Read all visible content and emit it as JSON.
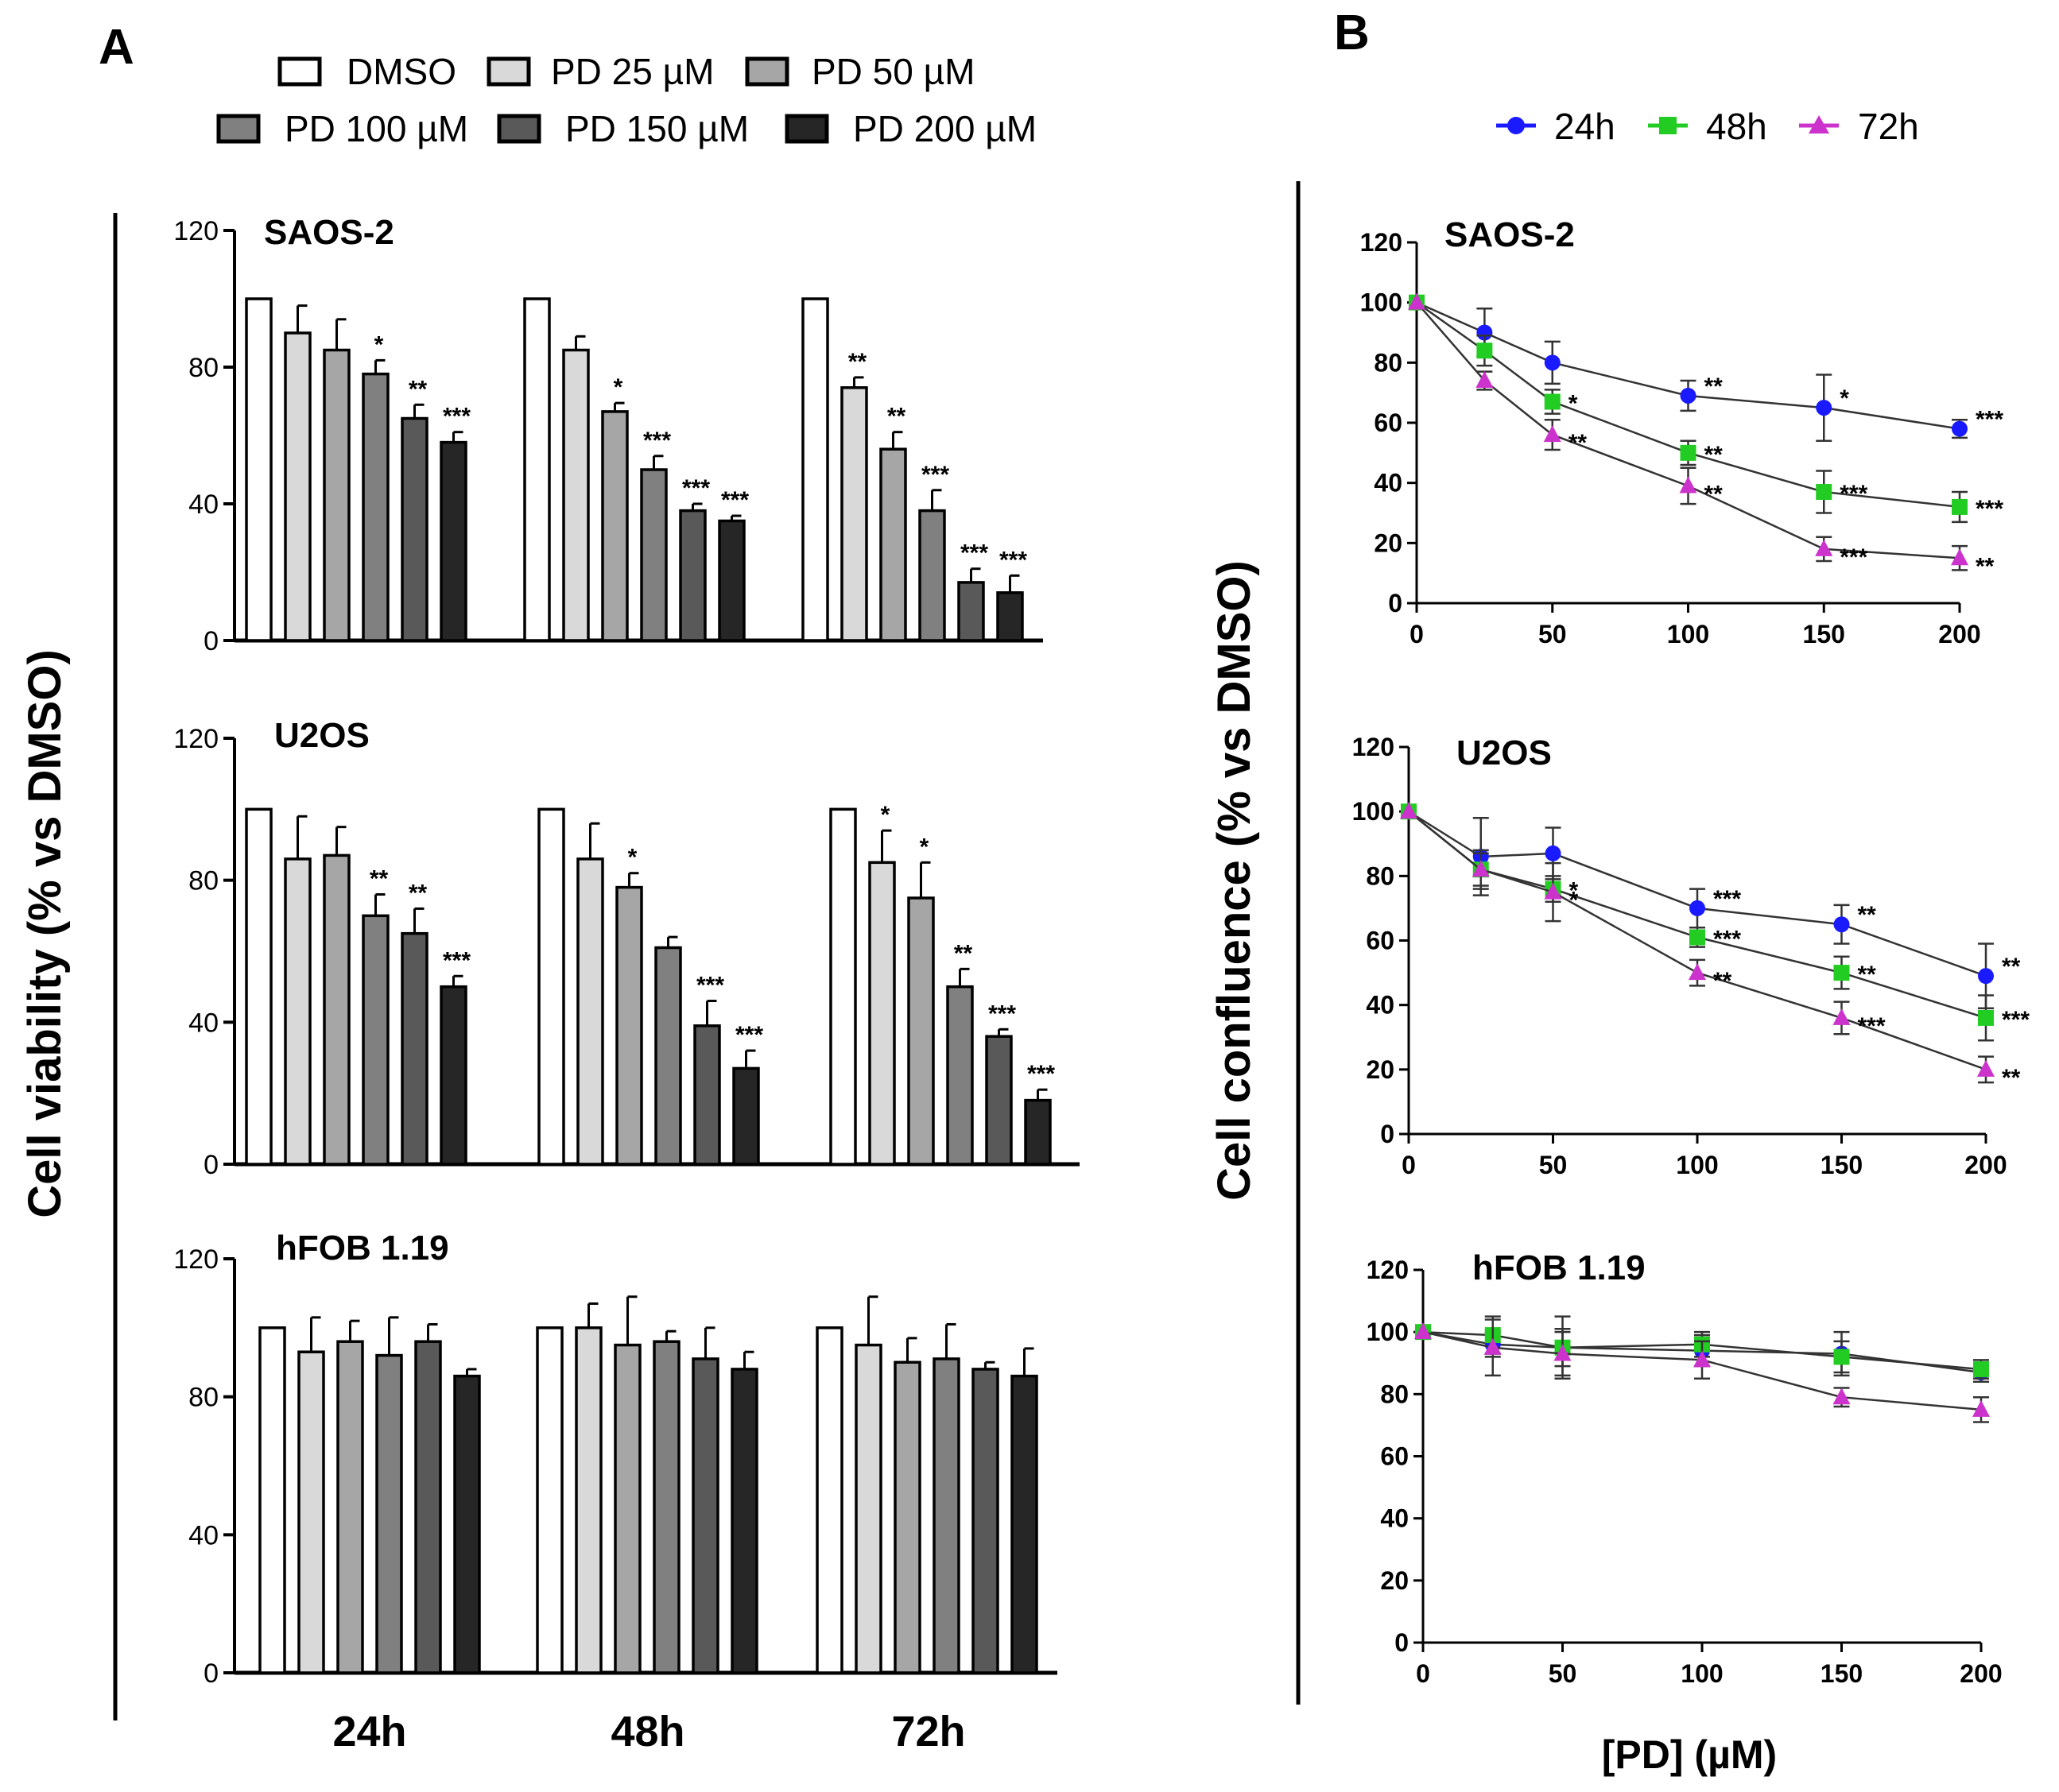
{
  "panel_labels": [
    "A",
    "B"
  ],
  "panel_a": {
    "legend": [
      "DMSO",
      "PD 25 µM",
      "PD 50 µM",
      "PD 100 µM",
      "PD 150 µM",
      "PD 200 µM"
    ],
    "ylabel": "Cell viability (% vs DMSO)",
    "group_labels": [
      "24h",
      "48h",
      "72h"
    ],
    "yticks": [
      0,
      40,
      80,
      120
    ]
  },
  "panel_b": {
    "legend": [
      "24h",
      "48h",
      "72h"
    ],
    "ylabel": "Cell confluence (% vs DMSO)",
    "xlabel": "[PD] (µM)",
    "xticks": [
      0,
      50,
      100,
      150,
      200
    ],
    "yticks": [
      0,
      20,
      40,
      60,
      80,
      100,
      120
    ]
  },
  "colors": {
    "bars": [
      "#ffffff",
      "#d9d9d9",
      "#a6a6a6",
      "#808080",
      "#595959",
      "#262626"
    ],
    "h24": "#1a1aff",
    "h48": "#22cc22",
    "h72": "#cc33cc"
  },
  "chart_data": [
    {
      "type": "bar",
      "title": "SAOS-2",
      "categories": [
        "24h",
        "48h",
        "72h"
      ],
      "ylabel": "Cell viability (% vs DMSO)",
      "ylim": [
        0,
        120
      ],
      "series": [
        {
          "name": "DMSO",
          "values": [
            100,
            100,
            100
          ],
          "errors": [
            0,
            0,
            0
          ],
          "stars": [
            "",
            "",
            ""
          ]
        },
        {
          "name": "PD 25 µM",
          "values": [
            90,
            85,
            74
          ],
          "errors": [
            8,
            4,
            3
          ],
          "stars": [
            "",
            "",
            "**"
          ]
        },
        {
          "name": "PD 50 µM",
          "values": [
            85,
            67,
            56
          ],
          "errors": [
            9,
            2.5,
            5
          ],
          "stars": [
            "",
            "*",
            "**"
          ]
        },
        {
          "name": "PD 100 µM",
          "values": [
            78,
            50,
            38
          ],
          "errors": [
            4,
            4,
            6
          ],
          "stars": [
            "*",
            "***",
            "***"
          ]
        },
        {
          "name": "PD 150 µM",
          "values": [
            65,
            38,
            17
          ],
          "errors": [
            4,
            2,
            4
          ],
          "stars": [
            "**",
            "***",
            "***"
          ]
        },
        {
          "name": "PD 200 µM",
          "values": [
            58,
            35,
            14
          ],
          "errors": [
            3,
            1.5,
            5
          ],
          "stars": [
            "***",
            "***",
            "***"
          ]
        }
      ]
    },
    {
      "type": "bar",
      "title": "U2OS",
      "categories": [
        "24h",
        "48h",
        "72h"
      ],
      "ylabel": "Cell viability (% vs DMSO)",
      "ylim": [
        0,
        120
      ],
      "series": [
        {
          "name": "DMSO",
          "values": [
            100,
            100,
            100
          ],
          "errors": [
            0,
            0,
            0
          ],
          "stars": [
            "",
            "",
            ""
          ]
        },
        {
          "name": "PD 25 µM",
          "values": [
            86,
            86,
            85
          ],
          "errors": [
            12,
            10,
            9
          ],
          "stars": [
            "",
            "",
            "*"
          ]
        },
        {
          "name": "PD 50 µM",
          "values": [
            87,
            78,
            75
          ],
          "errors": [
            8,
            4,
            10
          ],
          "stars": [
            "",
            "*",
            "*"
          ]
        },
        {
          "name": "PD 100 µM",
          "values": [
            70,
            61,
            50
          ],
          "errors": [
            6,
            3,
            5
          ],
          "stars": [
            "**",
            "",
            "**"
          ]
        },
        {
          "name": "PD 150 µM",
          "values": [
            65,
            39,
            36
          ],
          "errors": [
            7,
            7,
            2
          ],
          "stars": [
            "**",
            "***",
            "***"
          ]
        },
        {
          "name": "PD 200 µM",
          "values": [
            50,
            27,
            18
          ],
          "errors": [
            3,
            5,
            3
          ],
          "stars": [
            "***",
            "***",
            "***"
          ]
        }
      ]
    },
    {
      "type": "bar",
      "title": "hFOB 1.19",
      "categories": [
        "24h",
        "48h",
        "72h"
      ],
      "ylabel": "Cell viability (% vs DMSO)",
      "ylim": [
        0,
        120
      ],
      "series": [
        {
          "name": "DMSO",
          "values": [
            100,
            100,
            100
          ],
          "errors": [
            0,
            0,
            0
          ],
          "stars": [
            "",
            "",
            ""
          ]
        },
        {
          "name": "PD 25 µM",
          "values": [
            93,
            100,
            95
          ],
          "errors": [
            10,
            7,
            14
          ],
          "stars": [
            "",
            "",
            ""
          ]
        },
        {
          "name": "PD 50 µM",
          "values": [
            96,
            95,
            90
          ],
          "errors": [
            6,
            14,
            7
          ],
          "stars": [
            "",
            "",
            ""
          ]
        },
        {
          "name": "PD 100 µM",
          "values": [
            92,
            96,
            91
          ],
          "errors": [
            11,
            3,
            10
          ],
          "stars": [
            "",
            "",
            ""
          ]
        },
        {
          "name": "PD 150 µM",
          "values": [
            96,
            91,
            88
          ],
          "errors": [
            5,
            9,
            2
          ],
          "stars": [
            "",
            "",
            ""
          ]
        },
        {
          "name": "PD 200 µM",
          "values": [
            86,
            88,
            86
          ],
          "errors": [
            2,
            5,
            8
          ],
          "stars": [
            "",
            "",
            ""
          ]
        }
      ]
    },
    {
      "type": "line",
      "title": "SAOS-2",
      "x": [
        0,
        25,
        50,
        100,
        150,
        200
      ],
      "xlabel": "[PD] (µM)",
      "ylabel": "Cell confluence (% vs DMSO)",
      "xlim": [
        0,
        200
      ],
      "ylim": [
        0,
        120
      ],
      "series": [
        {
          "name": "24h",
          "values": [
            100,
            90,
            80,
            69,
            65,
            58
          ],
          "errors": [
            0,
            8,
            7,
            5,
            11,
            3
          ],
          "stars": [
            "",
            "",
            "",
            "**",
            "*",
            "***"
          ]
        },
        {
          "name": "48h",
          "values": [
            100,
            84,
            67,
            50,
            37,
            32
          ],
          "errors": [
            0,
            5,
            4,
            4,
            7,
            5
          ],
          "stars": [
            "",
            "",
            "*",
            "**",
            "***",
            "***"
          ]
        },
        {
          "name": "72h",
          "values": [
            100,
            74,
            56,
            39,
            18,
            15
          ],
          "errors": [
            0,
            3,
            5,
            6,
            4,
            4
          ],
          "stars": [
            "",
            "",
            "**",
            "**",
            "***",
            "**"
          ]
        }
      ]
    },
    {
      "type": "line",
      "title": "U2OS",
      "x": [
        0,
        25,
        50,
        100,
        150,
        200
      ],
      "xlabel": "[PD] (µM)",
      "ylabel": "Cell confluence (% vs DMSO)",
      "xlim": [
        0,
        200
      ],
      "ylim": [
        0,
        120
      ],
      "series": [
        {
          "name": "24h",
          "values": [
            100,
            86,
            87,
            70,
            65,
            49
          ],
          "errors": [
            0,
            12,
            8,
            6,
            6,
            10
          ],
          "stars": [
            "",
            "",
            "",
            "***",
            "**",
            "**"
          ]
        },
        {
          "name": "48h",
          "values": [
            100,
            82,
            76,
            61,
            50,
            36
          ],
          "errors": [
            0,
            6,
            4,
            3,
            5,
            7
          ],
          "stars": [
            "",
            "",
            "*",
            "***",
            "**",
            "***"
          ]
        },
        {
          "name": "72h",
          "values": [
            100,
            82,
            75,
            50,
            36,
            20
          ],
          "errors": [
            0,
            5,
            9,
            4,
            5,
            4
          ],
          "stars": [
            "",
            "",
            "*",
            "**",
            "***",
            "**"
          ]
        }
      ]
    },
    {
      "type": "line",
      "title": "hFOB 1.19",
      "x": [
        0,
        25,
        50,
        100,
        150,
        200
      ],
      "xlabel": "[PD] (µM)",
      "ylabel": "Cell confluence (% vs DMSO)",
      "xlim": [
        0,
        200
      ],
      "ylim": [
        0,
        120
      ],
      "series": [
        {
          "name": "24h",
          "values": [
            100,
            96,
            95,
            94,
            93,
            87
          ],
          "errors": [
            0,
            4,
            10,
            5,
            7,
            3
          ],
          "stars": [
            "",
            "",
            "",
            "",
            "",
            ""
          ]
        },
        {
          "name": "48h",
          "values": [
            100,
            99,
            95,
            96,
            92,
            88
          ],
          "errors": [
            0,
            6,
            6,
            4,
            5,
            3
          ],
          "stars": [
            "",
            "",
            "",
            "",
            "",
            ""
          ]
        },
        {
          "name": "72h",
          "values": [
            100,
            95,
            93,
            91,
            79,
            75
          ],
          "errors": [
            0,
            9,
            7,
            6,
            3,
            4
          ],
          "stars": [
            "",
            "",
            "",
            "",
            "",
            ""
          ]
        }
      ]
    }
  ]
}
